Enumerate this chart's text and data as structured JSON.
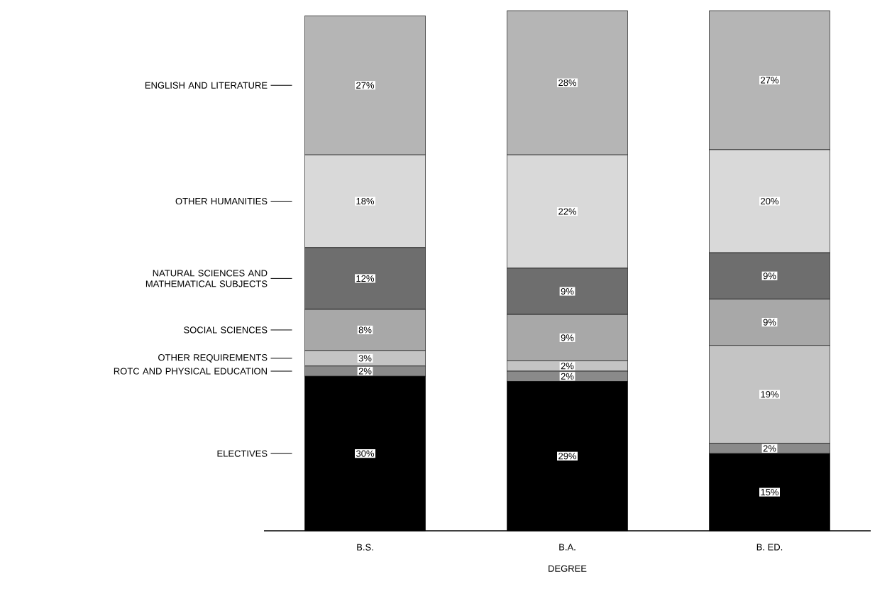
{
  "chart_data": {
    "type": "bar",
    "stacked": true,
    "xlabel": "DEGREE",
    "categories": [
      "B.S.",
      "B.A.",
      "B. ED."
    ],
    "series": [
      {
        "name": "ELECTIVES",
        "color": "#000000",
        "values": [
          30,
          29,
          15
        ],
        "value_labels": [
          "30%",
          "29%",
          "15%"
        ]
      },
      {
        "name": "ROTC AND PHYSICAL EDUCATION",
        "color": "#8a8a8a",
        "values": [
          2,
          2,
          2
        ],
        "value_labels": [
          "2%",
          "2%",
          "2%"
        ]
      },
      {
        "name": "OTHER REQUIREMENTS",
        "color": "#c4c4c4",
        "values": [
          3,
          2,
          19
        ],
        "value_labels": [
          "3%",
          "2%",
          "19%"
        ]
      },
      {
        "name": "SOCIAL SCIENCES",
        "color": "#a8a8a8",
        "values": [
          8,
          9,
          9
        ],
        "value_labels": [
          "8%",
          "9%",
          "9%"
        ]
      },
      {
        "name": "NATURAL SCIENCES AND MATHEMATICAL SUBJECTS",
        "color": "#6e6e6e",
        "values": [
          12,
          9,
          9
        ],
        "value_labels": [
          "12%",
          "9%",
          "9%"
        ]
      },
      {
        "name": "OTHER HUMANITIES",
        "color": "#d9d9d9",
        "values": [
          18,
          22,
          20
        ],
        "value_labels": [
          "18%",
          "22%",
          "20%"
        ]
      },
      {
        "name": "ENGLISH AND LITERATURE",
        "color": "#b5b5b5",
        "values": [
          27,
          28,
          27
        ],
        "value_labels": [
          "27%",
          "28%",
          "27%"
        ]
      }
    ],
    "legend": "left",
    "grid": false
  }
}
